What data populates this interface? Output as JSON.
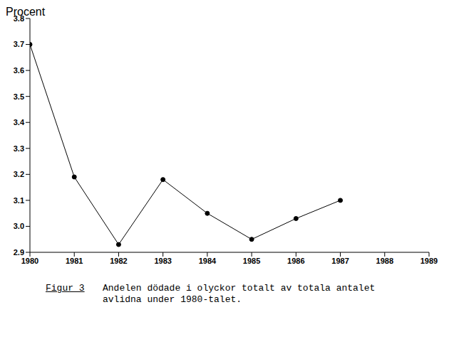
{
  "chart_data": {
    "type": "line",
    "figure_label": "Figur 3",
    "title": "Andelen dödade i olyckor totalt av totala antalet avlidna under 1980-talet.",
    "y_label": "Procent",
    "x": [
      1980,
      1981,
      1982,
      1983,
      1984,
      1985,
      1986,
      1987
    ],
    "values": [
      3.7,
      3.19,
      2.93,
      3.18,
      3.05,
      2.95,
      3.03,
      3.1
    ],
    "color": "#000000",
    "marker": "circle",
    "line_style": "solid",
    "grid": false,
    "xlim": [
      1980,
      1989
    ],
    "xticks": [
      1980,
      1981,
      1982,
      1983,
      1984,
      1985,
      1986,
      1987,
      1988,
      1989
    ],
    "ylim": [
      2.9,
      3.8
    ],
    "yticks": [
      2.9,
      {
        "value": 3,
        "label": "3.0"
      },
      3.1,
      3.2,
      3.3,
      3.4,
      3.5,
      3.6,
      3.7,
      3.8
    ]
  }
}
